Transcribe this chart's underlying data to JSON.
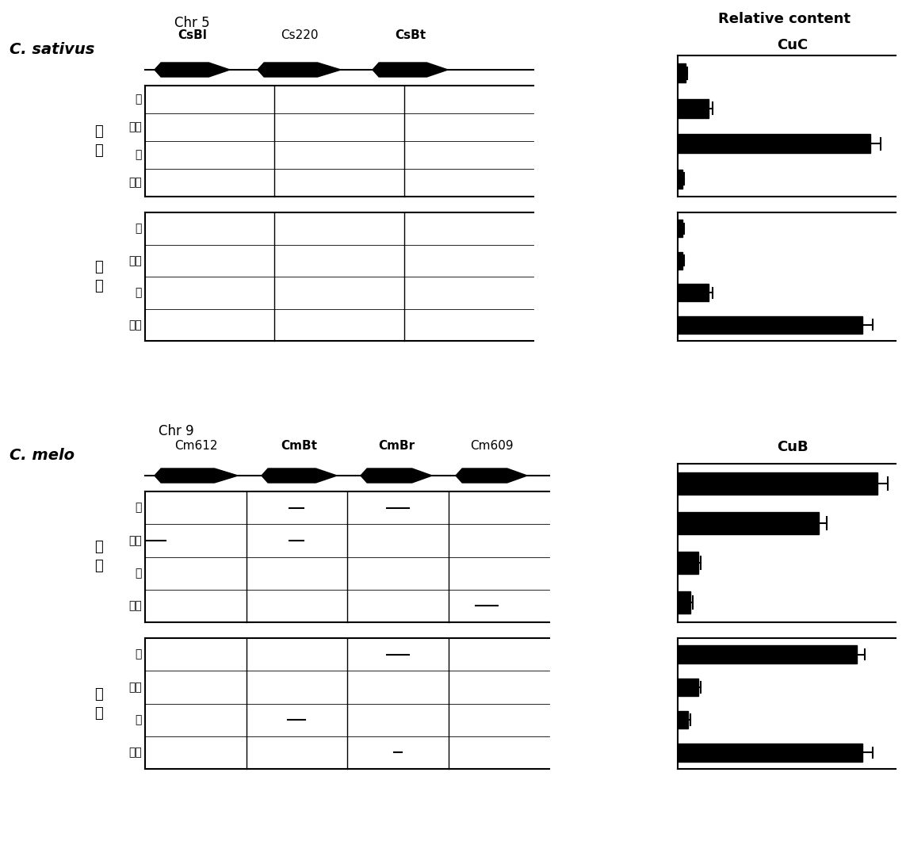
{
  "fig_width": 11.43,
  "fig_height": 10.66,
  "cs_genes": [
    "CsBl",
    "Cs220",
    "CsBt"
  ],
  "cm_genes": [
    "Cm612",
    "CmBt",
    "CmBr",
    "Cm609"
  ],
  "cs_gene_bold": [
    true,
    false,
    true
  ],
  "cm_gene_bold": [
    false,
    true,
    true,
    false
  ],
  "cuc_bitter_values": [
    0.03,
    0.12,
    0.75,
    0.02
  ],
  "cuc_bitter_errors": [
    0.008,
    0.015,
    0.04,
    0.005
  ],
  "cuc_nonbitter_values": [
    0.02,
    0.02,
    0.12,
    0.72
  ],
  "cuc_nonbitter_errors": [
    0.005,
    0.005,
    0.015,
    0.04
  ],
  "cub_bitter_values": [
    0.78,
    0.55,
    0.08,
    0.05
  ],
  "cub_bitter_errors": [
    0.04,
    0.03,
    0.01,
    0.01
  ],
  "cub_nonbitter_values": [
    0.7,
    0.08,
    0.04,
    0.72
  ],
  "cub_nonbitter_errors": [
    0.03,
    0.01,
    0.008,
    0.04
  ],
  "cs_row_labels": [
    "根",
    "茎叶",
    "子",
    "果实"
  ],
  "cm_row_labels": [
    "根",
    "茎叶",
    "子",
    "果实"
  ],
  "bitter_label1": "法",
  "bitter_label2": "糸",
  "nonbitter_label1": "出",
  "nonbitter_label2": "虫"
}
